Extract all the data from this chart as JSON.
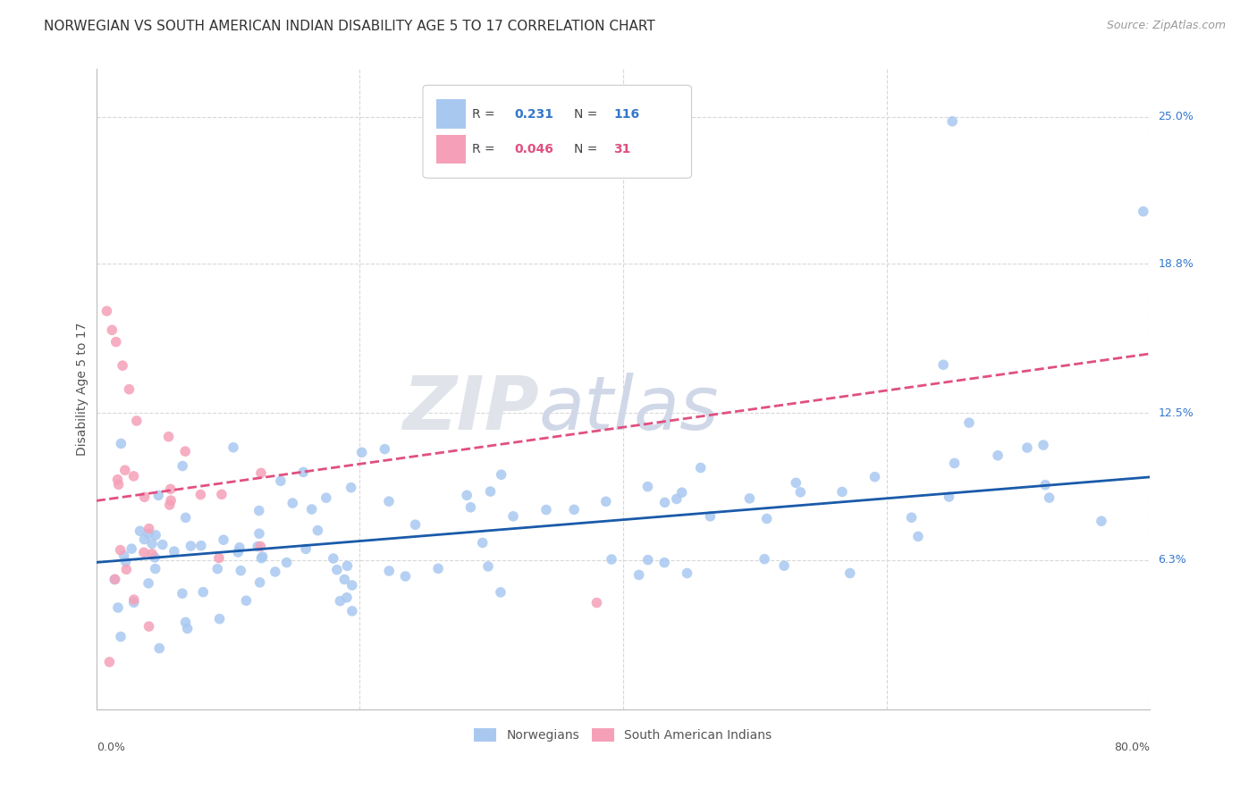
{
  "title": "NORWEGIAN VS SOUTH AMERICAN INDIAN DISABILITY AGE 5 TO 17 CORRELATION CHART",
  "source": "Source: ZipAtlas.com",
  "ylabel": "Disability Age 5 to 17",
  "xlim": [
    0.0,
    80.0
  ],
  "ylim": [
    0.0,
    27.0
  ],
  "yticks": [
    6.3,
    12.5,
    18.8,
    25.0
  ],
  "ytick_labels": [
    "6.3%",
    "12.5%",
    "18.8%",
    "25.0%"
  ],
  "legend_R1": "0.231",
  "legend_N1": "116",
  "legend_R2": "0.046",
  "legend_N2": "31",
  "color_norwegian": "#a8c8f0",
  "color_sa_indian": "#f5a0b8",
  "color_trend_norwegian": "#1a5aaa",
  "color_trend_sa_indian": "#e05080",
  "background_color": "#ffffff",
  "grid_color": "#d8d8d8",
  "nor_trend_x0": 0.0,
  "nor_trend_y0": 6.2,
  "nor_trend_x1": 80.0,
  "nor_trend_y1": 9.8,
  "sa_trend_x0": 0.0,
  "sa_trend_y0": 8.8,
  "sa_trend_x1": 80.0,
  "sa_trend_y1": 15.0
}
